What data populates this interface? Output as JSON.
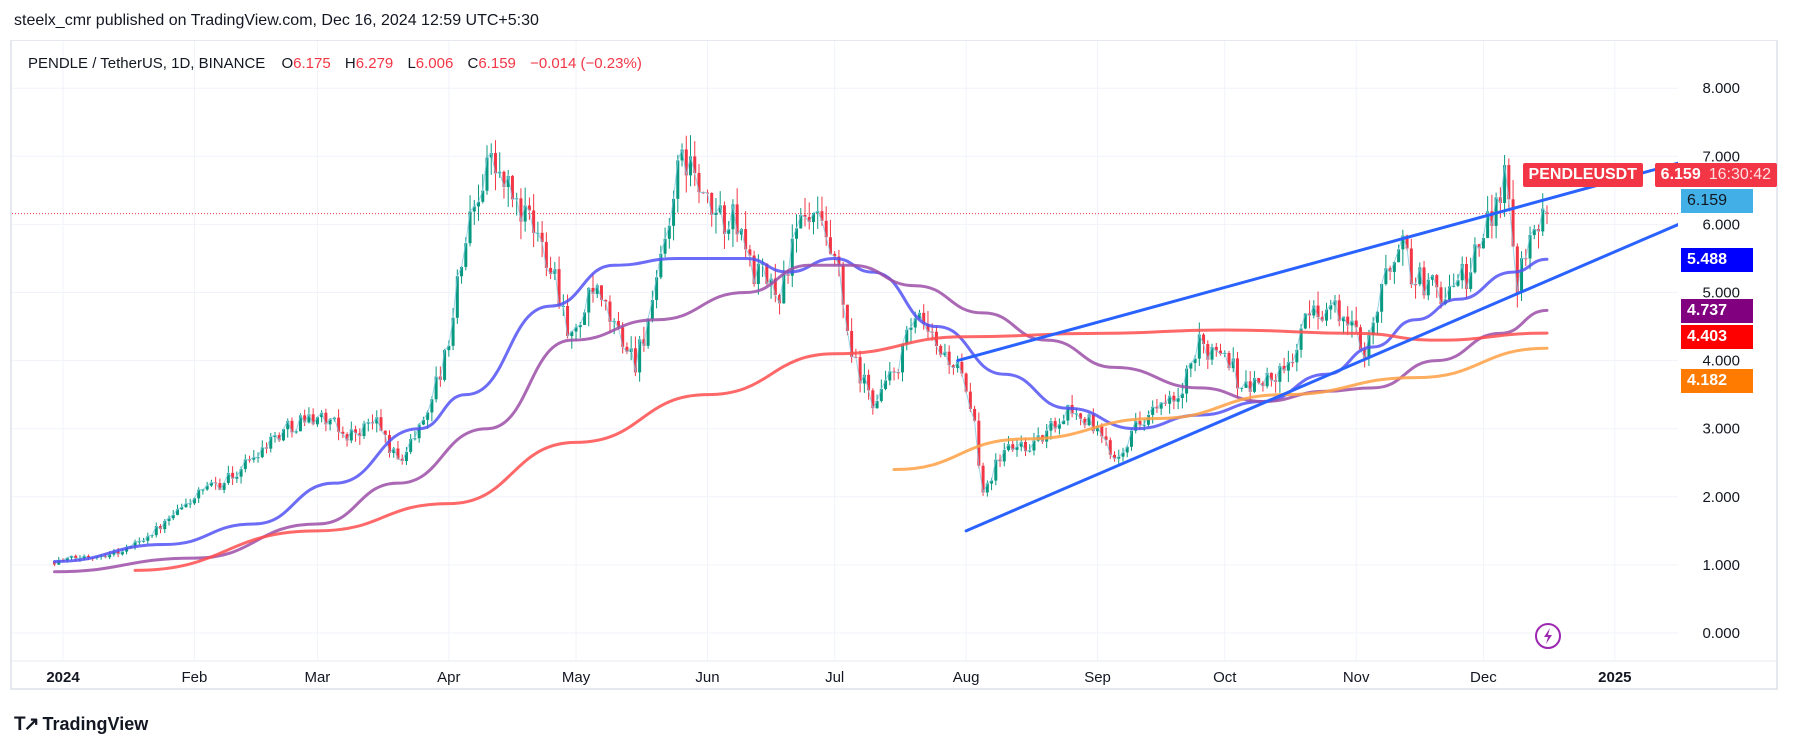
{
  "header": {
    "publisher_line": "steelx_cmr published on TradingView.com, Dec 16, 2024 12:59 UTC+5:30"
  },
  "legend": {
    "symbol": "PENDLE / TetherUS, 1D, BINANCE",
    "o_label": "O",
    "o": "6.175",
    "h_label": "H",
    "h": "6.279",
    "l_label": "L",
    "l": "6.006",
    "c_label": "C",
    "c": "6.159",
    "change": "−0.014 (−0.23%)"
  },
  "tags": {
    "symbol": "PENDLEUSDT",
    "last_price": "6.159",
    "countdown": "16:30:42",
    "line_price": "6.159",
    "ma_blue": "5.488",
    "ma_purple": "4.737",
    "ma_red": "4.403",
    "ma_orange": "4.182"
  },
  "colors": {
    "up": "#089981",
    "down": "#f23645",
    "ma_blue": "#5252f5",
    "ma_purple": "#9c4fa8",
    "ma_red": "#ff4d4d",
    "ma_orange": "#ffa043",
    "trendline": "#2962ff",
    "close_line": "#7ec8e3",
    "tag_blue_line": "#42b0e6"
  },
  "footer": {
    "brand": "TradingView",
    "logo_mark": "17",
    "lightning_icon": "lightning-icon"
  },
  "chart_data": {
    "type": "candlestick",
    "title": "PENDLE / TetherUS, 1D, BINANCE",
    "ylim": [
      0,
      8
    ],
    "y_ticks": [
      "8.000",
      "7.000",
      "6.000",
      "5.000",
      "4.000",
      "3.000",
      "2.000",
      "1.000",
      "0.000"
    ],
    "x_ticks": [
      {
        "label": "2024",
        "date": "2024-01-01",
        "bold": true
      },
      {
        "label": "Feb",
        "date": "2024-02-01"
      },
      {
        "label": "Mar",
        "date": "2024-03-01"
      },
      {
        "label": "Apr",
        "date": "2024-04-01"
      },
      {
        "label": "May",
        "date": "2024-05-01"
      },
      {
        "label": "Jun",
        "date": "2024-06-01"
      },
      {
        "label": "Jul",
        "date": "2024-07-01"
      },
      {
        "label": "Aug",
        "date": "2024-08-01"
      },
      {
        "label": "Sep",
        "date": "2024-09-01"
      },
      {
        "label": "Oct",
        "date": "2024-10-01"
      },
      {
        "label": "Nov",
        "date": "2024-11-01"
      },
      {
        "label": "Dec",
        "date": "2024-12-01"
      },
      {
        "label": "2025",
        "date": "2025-01-01",
        "bold": true
      }
    ],
    "grid": true,
    "last_bar": {
      "date": "2024-12-16",
      "open": 6.175,
      "high": 6.279,
      "low": 6.006,
      "close": 6.159
    },
    "close_path": [
      [
        "2023-12-30",
        1.05
      ],
      [
        "2024-01-15",
        1.2
      ],
      [
        "2024-01-25",
        1.6
      ],
      [
        "2024-02-01",
        2.0
      ],
      [
        "2024-02-10",
        2.3
      ],
      [
        "2024-02-18",
        2.8
      ],
      [
        "2024-02-25",
        3.1
      ],
      [
        "2024-03-01",
        3.2
      ],
      [
        "2024-03-08",
        2.9
      ],
      [
        "2024-03-15",
        3.1
      ],
      [
        "2024-03-20",
        2.5
      ],
      [
        "2024-03-25",
        3.0
      ],
      [
        "2024-03-31",
        4.0
      ],
      [
        "2024-04-05",
        5.8
      ],
      [
        "2024-04-10",
        7.0
      ],
      [
        "2024-04-15",
        6.5
      ],
      [
        "2024-04-20",
        6.0
      ],
      [
        "2024-04-25",
        5.5
      ],
      [
        "2024-04-30",
        4.3
      ],
      [
        "2024-05-05",
        5.0
      ],
      [
        "2024-05-10",
        4.5
      ],
      [
        "2024-05-15",
        4.0
      ],
      [
        "2024-05-20",
        5.0
      ],
      [
        "2024-05-24",
        6.5
      ],
      [
        "2024-05-27",
        7.0
      ],
      [
        "2024-06-01",
        6.2
      ],
      [
        "2024-06-08",
        6.0
      ],
      [
        "2024-06-12",
        5.3
      ],
      [
        "2024-06-18",
        5.0
      ],
      [
        "2024-06-23",
        6.0
      ],
      [
        "2024-06-27",
        6.0
      ],
      [
        "2024-07-02",
        5.2
      ],
      [
        "2024-07-05",
        4.0
      ],
      [
        "2024-07-10",
        3.4
      ],
      [
        "2024-07-15",
        3.8
      ],
      [
        "2024-07-20",
        4.6
      ],
      [
        "2024-07-25",
        4.2
      ],
      [
        "2024-07-30",
        3.9
      ],
      [
        "2024-08-03",
        3.0
      ],
      [
        "2024-08-05",
        2.1
      ],
      [
        "2024-08-10",
        2.7
      ],
      [
        "2024-08-18",
        2.8
      ],
      [
        "2024-08-25",
        3.3
      ],
      [
        "2024-08-30",
        3.1
      ],
      [
        "2024-09-05",
        2.6
      ],
      [
        "2024-09-12",
        3.2
      ],
      [
        "2024-09-20",
        3.4
      ],
      [
        "2024-09-25",
        4.2
      ],
      [
        "2024-10-01",
        4.2
      ],
      [
        "2024-10-05",
        3.6
      ],
      [
        "2024-10-15",
        3.8
      ],
      [
        "2024-10-22",
        4.8
      ],
      [
        "2024-10-28",
        4.7
      ],
      [
        "2024-11-03",
        4.2
      ],
      [
        "2024-11-07",
        5.0
      ],
      [
        "2024-11-11",
        5.8
      ],
      [
        "2024-11-15",
        5.2
      ],
      [
        "2024-11-22",
        5.0
      ],
      [
        "2024-11-28",
        5.3
      ],
      [
        "2024-12-03",
        6.2
      ],
      [
        "2024-12-06",
        6.8
      ],
      [
        "2024-12-09",
        5.2
      ],
      [
        "2024-12-12",
        6.0
      ],
      [
        "2024-12-16",
        6.159
      ]
    ],
    "series": [
      {
        "key": "ma_blue",
        "values": [
          [
            "2023-12-30",
            1.05
          ],
          [
            "2024-01-25",
            1.3
          ],
          [
            "2024-02-15",
            1.6
          ],
          [
            "2024-03-05",
            2.2
          ],
          [
            "2024-03-25",
            3.0
          ],
          [
            "2024-04-05",
            3.5
          ],
          [
            "2024-04-25",
            4.8
          ],
          [
            "2024-05-10",
            5.4
          ],
          [
            "2024-05-25",
            5.5
          ],
          [
            "2024-06-10",
            5.5
          ],
          [
            "2024-06-20",
            5.3
          ],
          [
            "2024-07-01",
            5.5
          ],
          [
            "2024-07-10",
            5.3
          ],
          [
            "2024-07-25",
            4.5
          ],
          [
            "2024-08-10",
            3.8
          ],
          [
            "2024-08-25",
            3.3
          ],
          [
            "2024-09-10",
            3.0
          ],
          [
            "2024-09-25",
            3.2
          ],
          [
            "2024-10-10",
            3.4
          ],
          [
            "2024-10-25",
            3.8
          ],
          [
            "2024-11-05",
            4.2
          ],
          [
            "2024-11-15",
            4.6
          ],
          [
            "2024-11-25",
            4.9
          ],
          [
            "2024-12-08",
            5.3
          ],
          [
            "2024-12-16",
            5.488
          ]
        ]
      },
      {
        "key": "ma_purple",
        "values": [
          [
            "2023-12-30",
            0.9
          ],
          [
            "2024-02-01",
            1.1
          ],
          [
            "2024-03-01",
            1.6
          ],
          [
            "2024-03-20",
            2.2
          ],
          [
            "2024-04-10",
            3.0
          ],
          [
            "2024-04-30",
            4.3
          ],
          [
            "2024-05-20",
            4.6
          ],
          [
            "2024-06-10",
            5.0
          ],
          [
            "2024-06-25",
            5.4
          ],
          [
            "2024-07-05",
            5.4
          ],
          [
            "2024-07-20",
            5.1
          ],
          [
            "2024-08-05",
            4.7
          ],
          [
            "2024-08-20",
            4.3
          ],
          [
            "2024-09-05",
            3.9
          ],
          [
            "2024-09-25",
            3.6
          ],
          [
            "2024-10-10",
            3.4
          ],
          [
            "2024-10-25",
            3.55
          ],
          [
            "2024-11-05",
            3.6
          ],
          [
            "2024-11-20",
            4.0
          ],
          [
            "2024-12-05",
            4.4
          ],
          [
            "2024-12-16",
            4.737
          ]
        ]
      },
      {
        "key": "ma_red",
        "values": [
          [
            "2024-01-18",
            0.92
          ],
          [
            "2024-03-01",
            1.5
          ],
          [
            "2024-04-01",
            1.9
          ],
          [
            "2024-05-01",
            2.8
          ],
          [
            "2024-06-01",
            3.5
          ],
          [
            "2024-07-01",
            4.1
          ],
          [
            "2024-08-01",
            4.35
          ],
          [
            "2024-09-01",
            4.4
          ],
          [
            "2024-10-01",
            4.45
          ],
          [
            "2024-11-01",
            4.4
          ],
          [
            "2024-11-20",
            4.3
          ],
          [
            "2024-12-16",
            4.403
          ]
        ]
      },
      {
        "key": "ma_orange",
        "values": [
          [
            "2024-07-15",
            2.4
          ],
          [
            "2024-08-15",
            2.85
          ],
          [
            "2024-09-15",
            3.15
          ],
          [
            "2024-10-15",
            3.5
          ],
          [
            "2024-11-15",
            3.75
          ],
          [
            "2024-12-16",
            4.182
          ]
        ]
      }
    ],
    "trendlines": [
      {
        "name": "upper-channel",
        "from": [
          "2024-07-30",
          4.0
        ],
        "to": [
          "2025-01-16",
          6.9
        ]
      },
      {
        "name": "lower-channel",
        "from": [
          "2024-08-01",
          1.5
        ],
        "to": [
          "2025-01-16",
          6.0
        ]
      }
    ],
    "last_price_line": 6.159
  }
}
